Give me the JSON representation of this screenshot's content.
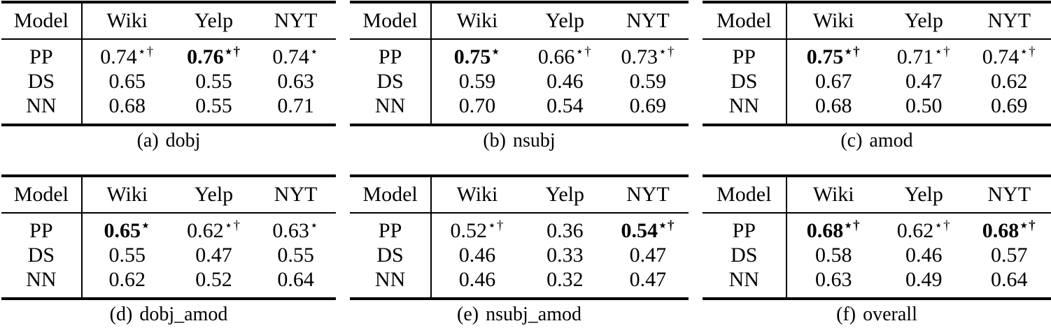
{
  "columns": [
    "Model",
    "Wiki",
    "Yelp",
    "NYT"
  ],
  "marks": {
    "star": "⋆",
    "dagger": "†"
  },
  "tables": [
    {
      "id": "a",
      "caption_label": "(a)",
      "caption_text": "dobj",
      "rows": [
        {
          "model": "PP",
          "cells": [
            {
              "value": "0.74",
              "sup": "⋆†",
              "bold": false
            },
            {
              "value": "0.76",
              "sup": "⋆†",
              "bold": true
            },
            {
              "value": "0.74",
              "sup": "⋆",
              "bold": false
            }
          ]
        },
        {
          "model": "DS",
          "cells": [
            {
              "value": "0.65",
              "sup": "",
              "bold": false
            },
            {
              "value": "0.55",
              "sup": "",
              "bold": false
            },
            {
              "value": "0.63",
              "sup": "",
              "bold": false
            }
          ]
        },
        {
          "model": "NN",
          "cells": [
            {
              "value": "0.68",
              "sup": "",
              "bold": false
            },
            {
              "value": "0.55",
              "sup": "",
              "bold": false
            },
            {
              "value": "0.71",
              "sup": "",
              "bold": false
            }
          ]
        }
      ]
    },
    {
      "id": "b",
      "caption_label": "(b)",
      "caption_text": "nsubj",
      "rows": [
        {
          "model": "PP",
          "cells": [
            {
              "value": "0.75",
              "sup": "⋆",
              "bold": true
            },
            {
              "value": "0.66",
              "sup": "⋆†",
              "bold": false
            },
            {
              "value": "0.73",
              "sup": "⋆†",
              "bold": false
            }
          ]
        },
        {
          "model": "DS",
          "cells": [
            {
              "value": "0.59",
              "sup": "",
              "bold": false
            },
            {
              "value": "0.46",
              "sup": "",
              "bold": false
            },
            {
              "value": "0.59",
              "sup": "",
              "bold": false
            }
          ]
        },
        {
          "model": "NN",
          "cells": [
            {
              "value": "0.70",
              "sup": "",
              "bold": false
            },
            {
              "value": "0.54",
              "sup": "",
              "bold": false
            },
            {
              "value": "0.69",
              "sup": "",
              "bold": false
            }
          ]
        }
      ]
    },
    {
      "id": "c",
      "caption_label": "(c)",
      "caption_text": "amod",
      "rows": [
        {
          "model": "PP",
          "cells": [
            {
              "value": "0.75",
              "sup": "⋆†",
              "bold": true
            },
            {
              "value": "0.71",
              "sup": "⋆†",
              "bold": false
            },
            {
              "value": "0.74",
              "sup": "⋆†",
              "bold": false
            }
          ]
        },
        {
          "model": "DS",
          "cells": [
            {
              "value": "0.67",
              "sup": "",
              "bold": false
            },
            {
              "value": "0.47",
              "sup": "",
              "bold": false
            },
            {
              "value": "0.62",
              "sup": "",
              "bold": false
            }
          ]
        },
        {
          "model": "NN",
          "cells": [
            {
              "value": "0.68",
              "sup": "",
              "bold": false
            },
            {
              "value": "0.50",
              "sup": "",
              "bold": false
            },
            {
              "value": "0.69",
              "sup": "",
              "bold": false
            }
          ]
        }
      ]
    },
    {
      "id": "d",
      "caption_label": "(d)",
      "caption_text": "dobj_amod",
      "rows": [
        {
          "model": "PP",
          "cells": [
            {
              "value": "0.65",
              "sup": "⋆",
              "bold": true
            },
            {
              "value": "0.62",
              "sup": "⋆†",
              "bold": false
            },
            {
              "value": "0.63",
              "sup": "⋆",
              "bold": false
            }
          ]
        },
        {
          "model": "DS",
          "cells": [
            {
              "value": "0.55",
              "sup": "",
              "bold": false
            },
            {
              "value": "0.47",
              "sup": "",
              "bold": false
            },
            {
              "value": "0.55",
              "sup": "",
              "bold": false
            }
          ]
        },
        {
          "model": "NN",
          "cells": [
            {
              "value": "0.62",
              "sup": "",
              "bold": false
            },
            {
              "value": "0.52",
              "sup": "",
              "bold": false
            },
            {
              "value": "0.64",
              "sup": "",
              "bold": false
            }
          ]
        }
      ]
    },
    {
      "id": "e",
      "caption_label": "(e)",
      "caption_text": "nsubj_amod",
      "rows": [
        {
          "model": "PP",
          "cells": [
            {
              "value": "0.52",
              "sup": "⋆†",
              "bold": false
            },
            {
              "value": "0.36",
              "sup": "",
              "bold": false
            },
            {
              "value": "0.54",
              "sup": "⋆†",
              "bold": true
            }
          ]
        },
        {
          "model": "DS",
          "cells": [
            {
              "value": "0.46",
              "sup": "",
              "bold": false
            },
            {
              "value": "0.33",
              "sup": "",
              "bold": false
            },
            {
              "value": "0.47",
              "sup": "",
              "bold": false
            }
          ]
        },
        {
          "model": "NN",
          "cells": [
            {
              "value": "0.46",
              "sup": "",
              "bold": false
            },
            {
              "value": "0.32",
              "sup": "",
              "bold": false
            },
            {
              "value": "0.47",
              "sup": "",
              "bold": false
            }
          ]
        }
      ]
    },
    {
      "id": "f",
      "caption_label": "(f)",
      "caption_text": "overall",
      "rows": [
        {
          "model": "PP",
          "cells": [
            {
              "value": "0.68",
              "sup": "⋆†",
              "bold": true
            },
            {
              "value": "0.62",
              "sup": "⋆†",
              "bold": false
            },
            {
              "value": "0.68",
              "sup": "⋆†",
              "bold": true
            }
          ]
        },
        {
          "model": "DS",
          "cells": [
            {
              "value": "0.58",
              "sup": "",
              "bold": false
            },
            {
              "value": "0.46",
              "sup": "",
              "bold": false
            },
            {
              "value": "0.57",
              "sup": "",
              "bold": false
            }
          ]
        },
        {
          "model": "NN",
          "cells": [
            {
              "value": "0.63",
              "sup": "",
              "bold": false
            },
            {
              "value": "0.49",
              "sup": "",
              "bold": false
            },
            {
              "value": "0.64",
              "sup": "",
              "bold": false
            }
          ]
        }
      ]
    }
  ]
}
